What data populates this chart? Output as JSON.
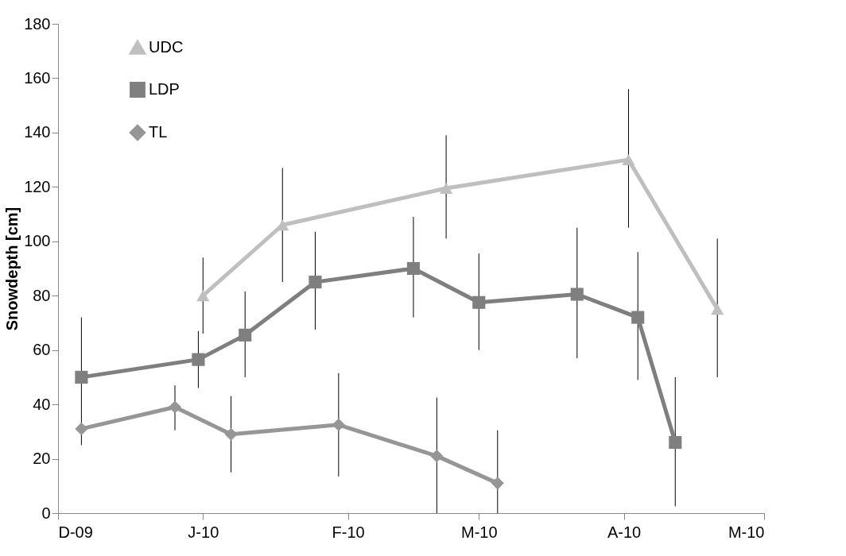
{
  "chart_data": {
    "type": "line",
    "ylabel": "Snowdepth [cm]",
    "xlim": [
      "2009-12-01",
      "2010-05-01"
    ],
    "xticks": [
      {
        "value": "2009-12-01",
        "label": "D-09"
      },
      {
        "value": "2010-01-01",
        "label": "J-10"
      },
      {
        "value": "2010-02-01",
        "label": "F-10"
      },
      {
        "value": "2010-03-01",
        "label": "M-10"
      },
      {
        "value": "2010-04-01",
        "label": "A-10"
      },
      {
        "value": "2010-05-01",
        "label": "M-10"
      }
    ],
    "ylim": [
      0,
      180
    ],
    "yticks": [
      0,
      20,
      40,
      60,
      80,
      100,
      120,
      140,
      160,
      180
    ],
    "legend": "top left",
    "series": [
      {
        "name": "UDC",
        "color": "#bfbfbf",
        "marker": "triangle",
        "x": [
          "2010-01-01",
          "2010-01-18",
          "2010-02-22",
          "2010-04-02",
          "2010-04-21"
        ],
        "values": [
          80,
          106,
          119.5,
          130,
          75
        ],
        "errors": [
          [
            66,
            94
          ],
          [
            85,
            127
          ],
          [
            101,
            139
          ],
          [
            105,
            156
          ],
          [
            50,
            101
          ]
        ]
      },
      {
        "name": "LDP",
        "color": "#7f7f7f",
        "marker": "square",
        "x": [
          "2009-12-06",
          "2009-12-31",
          "2010-01-10",
          "2010-01-25",
          "2010-02-15",
          "2010-03-01",
          "2010-03-22",
          "2010-04-04",
          "2010-04-12"
        ],
        "values": [
          50,
          56.5,
          65.5,
          85,
          90,
          77.5,
          80.5,
          72,
          26
        ],
        "errors": [
          [
            38,
            72
          ],
          [
            46,
            67
          ],
          [
            50,
            81.5
          ],
          [
            67.5,
            103.5
          ],
          [
            72,
            109
          ],
          [
            60,
            95.5
          ],
          [
            57,
            105
          ],
          [
            49,
            96
          ],
          [
            2.5,
            50
          ]
        ]
      },
      {
        "name": "TL",
        "color": "#969696",
        "marker": "diamond",
        "x": [
          "2009-12-06",
          "2009-12-26",
          "2010-01-07",
          "2010-01-30",
          "2010-02-20",
          "2010-03-05"
        ],
        "values": [
          31,
          39,
          29,
          32.5,
          21,
          11
        ],
        "errors": [
          [
            25,
            38
          ],
          [
            30.5,
            47
          ],
          [
            15,
            43
          ],
          [
            13.5,
            51.5
          ],
          [
            0,
            42.5
          ],
          [
            0,
            30.5
          ]
        ]
      }
    ]
  }
}
